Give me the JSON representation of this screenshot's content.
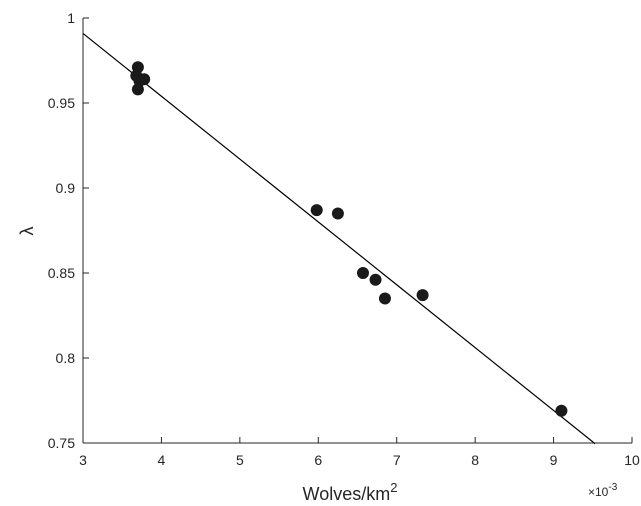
{
  "chart_data": {
    "type": "scatter",
    "title": "",
    "xlabel_base": "Wolves/km",
    "xlabel_sup": "2",
    "ylabel": "λ",
    "x_multiplier_base": "×10",
    "x_multiplier_exp": "-3",
    "xlim": [
      3,
      10
    ],
    "ylim": [
      0.75,
      1
    ],
    "xticks": [
      3,
      4,
      5,
      6,
      7,
      8,
      9,
      10
    ],
    "yticks": [
      0.75,
      0.8,
      0.85,
      0.9,
      0.95,
      1
    ],
    "xtick_labels": [
      "3",
      "4",
      "5",
      "6",
      "7",
      "8",
      "9",
      "10"
    ],
    "ytick_labels": [
      "0.75",
      "0.8",
      "0.85",
      "0.9",
      "0.95",
      "1"
    ],
    "grid": false,
    "colors": {
      "points": "#1a1a1a",
      "line": "#000000",
      "axes": "#262626"
    },
    "points": [
      {
        "x": 3.7,
        "y": 0.971
      },
      {
        "x": 3.68,
        "y": 0.966
      },
      {
        "x": 3.72,
        "y": 0.963
      },
      {
        "x": 3.78,
        "y": 0.964
      },
      {
        "x": 3.7,
        "y": 0.958
      },
      {
        "x": 5.98,
        "y": 0.887
      },
      {
        "x": 6.25,
        "y": 0.885
      },
      {
        "x": 6.57,
        "y": 0.85
      },
      {
        "x": 6.73,
        "y": 0.846
      },
      {
        "x": 6.85,
        "y": 0.835
      },
      {
        "x": 7.33,
        "y": 0.837
      },
      {
        "x": 9.1,
        "y": 0.769
      }
    ],
    "fit_line": {
      "slope": -0.03696,
      "intercept": 1.1018,
      "x_from": 3.0,
      "x_to": 9.53
    }
  }
}
